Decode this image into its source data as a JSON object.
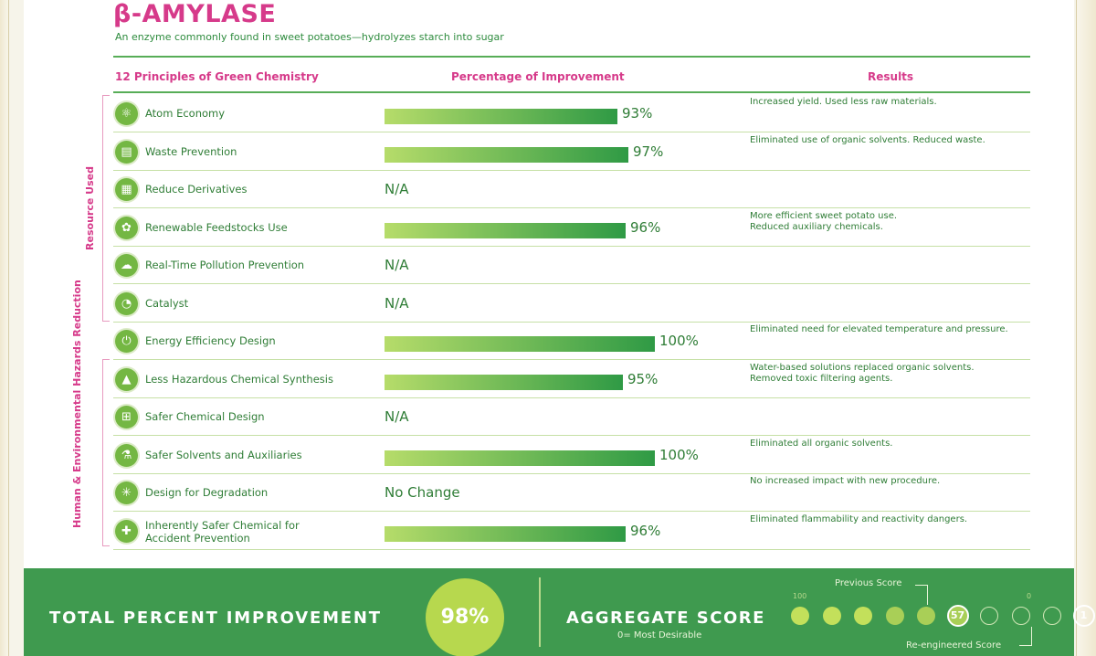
{
  "title": "β-AMYLASE",
  "subtitle": "An enzyme commonly found in sweet potatoes—hydrolyzes starch into sugar",
  "headers": {
    "principles": "12 Principles of Green Chemistry",
    "improvement": "Percentage of Improvement",
    "results": "Results"
  },
  "groups": {
    "resource": "Resource Used",
    "hazards": "Human & Environmental Hazards Reduction"
  },
  "rows": [
    {
      "icon": "atom-icon",
      "glyph": "⚛",
      "name": "Atom Economy",
      "pct": 93,
      "value": "93%",
      "result": "Increased yield. Used less raw materials."
    },
    {
      "icon": "waste-bin-icon",
      "glyph": "▤",
      "name": "Waste Prevention",
      "pct": 97,
      "value": "97%",
      "result": "Eliminated use of organic solvents. Reduced waste."
    },
    {
      "icon": "derivatives-icon",
      "glyph": "▦",
      "name": "Reduce Derivatives",
      "pct": null,
      "value": "N/A",
      "result": ""
    },
    {
      "icon": "feedstock-icon",
      "glyph": "✿",
      "name": "Renewable Feedstocks Use",
      "pct": 96,
      "value": "96%",
      "result": "More efficient sweet potato use.\nReduced auxiliary chemicals."
    },
    {
      "icon": "cloud-icon",
      "glyph": "☁",
      "name": "Real-Time Pollution Prevention",
      "pct": null,
      "value": "N/A",
      "result": ""
    },
    {
      "icon": "catalyst-icon",
      "glyph": "◔",
      "name": "Catalyst",
      "pct": null,
      "value": "N/A",
      "result": ""
    },
    {
      "icon": "plug-icon",
      "glyph": "⏻",
      "name": "Energy Efficiency Design",
      "pct": 100,
      "value": "100%",
      "result": "Eliminated need for elevated temperature and pressure."
    },
    {
      "icon": "hazard-icon",
      "glyph": "▲",
      "name": "Less Hazardous Chemical Synthesis",
      "pct": 95,
      "value": "95%",
      "result": "Water-based solutions replaced organic solvents.\nRemoved toxic filtering agents."
    },
    {
      "icon": "safer-design-icon",
      "glyph": "⊞",
      "name": "Safer Chemical Design",
      "pct": null,
      "value": "N/A",
      "result": ""
    },
    {
      "icon": "flask-icon",
      "glyph": "⚗",
      "name": "Safer Solvents and Auxiliaries",
      "pct": 100,
      "value": "100%",
      "result": "Eliminated all organic solvents."
    },
    {
      "icon": "degradation-icon",
      "glyph": "✳",
      "name": "Design for Degradation",
      "pct": null,
      "value": "No Change",
      "result": "No increased impact with new procedure."
    },
    {
      "icon": "plus-icon",
      "glyph": "✚",
      "name": "Inherently Safer Chemical for\nAccident Prevention",
      "pct": 96,
      "value": "96%",
      "result": "Eliminated flammability and reactivity dangers."
    }
  ],
  "footer": {
    "total_label": "TOTAL PERCENT IMPROVEMENT",
    "total_value": "98%",
    "aggregate_label": "AGGREGATE SCORE",
    "aggregate_sub": "0= Most Desirable",
    "scale_high": "100",
    "scale_low": "0",
    "previous_label": "Previous Score",
    "previous_value": "57",
    "reengineered_label": "Re-engineered Score",
    "reengineered_value": "1"
  },
  "colors": {
    "accent_pink": "#d63a8a",
    "green_dark": "#2f7d36",
    "footer_green": "#3f9a4f",
    "lime": "#b7d84e"
  }
}
